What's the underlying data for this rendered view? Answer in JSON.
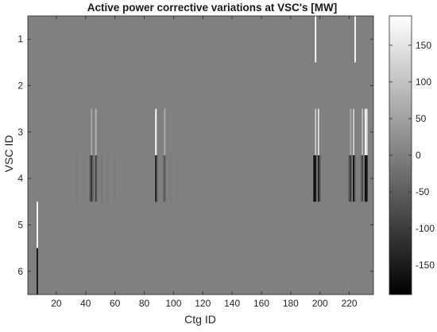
{
  "chart_data": {
    "type": "heatmap",
    "title": "Active power corrective variations at VSC's [MW]",
    "xlabel": "Ctg ID",
    "ylabel": "VSC ID",
    "x_range": [
      0.5,
      236.5
    ],
    "y_range": [
      0.5,
      6.5
    ],
    "y_reversed": true,
    "x_ticks": [
      20,
      40,
      60,
      80,
      100,
      120,
      140,
      160,
      180,
      200,
      220
    ],
    "y_ticks": [
      1,
      2,
      3,
      4,
      5,
      6
    ],
    "colormap": "gray",
    "clim": [
      -190,
      190
    ],
    "colorbar_ticks": [
      150,
      100,
      50,
      0,
      -50,
      -100,
      -150
    ],
    "background_value": 0,
    "rows": [
      1,
      2,
      3,
      4,
      5,
      6
    ],
    "nonzero_cells": [
      {
        "row": 1,
        "col": 197,
        "value": 190
      },
      {
        "row": 1,
        "col": 224,
        "value": 190
      },
      {
        "row": 3,
        "col": 44,
        "value": 60
      },
      {
        "row": 3,
        "col": 47,
        "value": 80
      },
      {
        "row": 3,
        "col": 88,
        "value": 190
      },
      {
        "row": 3,
        "col": 94,
        "value": 70
      },
      {
        "row": 3,
        "col": 197,
        "value": 110
      },
      {
        "row": 3,
        "col": 199,
        "value": 140
      },
      {
        "row": 3,
        "col": 221,
        "value": 70
      },
      {
        "row": 3,
        "col": 223,
        "value": 120
      },
      {
        "row": 3,
        "col": 229,
        "value": 90
      },
      {
        "row": 3,
        "col": 231,
        "value": 180
      },
      {
        "row": 3,
        "col": 232,
        "value": 150
      },
      {
        "row": 4,
        "col": 34,
        "value": -8
      },
      {
        "row": 4,
        "col": 39,
        "value": -5
      },
      {
        "row": 4,
        "col": 43,
        "value": -50
      },
      {
        "row": 4,
        "col": 44,
        "value": -120
      },
      {
        "row": 4,
        "col": 45,
        "value": -40
      },
      {
        "row": 4,
        "col": 47,
        "value": -100
      },
      {
        "row": 4,
        "col": 48,
        "value": -10
      },
      {
        "row": 4,
        "col": 51,
        "value": -12
      },
      {
        "row": 4,
        "col": 55,
        "value": -6
      },
      {
        "row": 4,
        "col": 60,
        "value": -5
      },
      {
        "row": 4,
        "col": 88,
        "value": -160
      },
      {
        "row": 4,
        "col": 89,
        "value": -30
      },
      {
        "row": 4,
        "col": 93,
        "value": -20
      },
      {
        "row": 4,
        "col": 94,
        "value": -70
      },
      {
        "row": 4,
        "col": 98,
        "value": -8
      },
      {
        "row": 4,
        "col": 102,
        "value": -6
      },
      {
        "row": 4,
        "col": 196,
        "value": -180
      },
      {
        "row": 4,
        "col": 197,
        "value": -160
      },
      {
        "row": 4,
        "col": 199,
        "value": -150
      },
      {
        "row": 4,
        "col": 200,
        "value": -60
      },
      {
        "row": 4,
        "col": 220,
        "value": -60
      },
      {
        "row": 4,
        "col": 221,
        "value": -110
      },
      {
        "row": 4,
        "col": 223,
        "value": -170
      },
      {
        "row": 4,
        "col": 224,
        "value": -40
      },
      {
        "row": 4,
        "col": 228,
        "value": -30
      },
      {
        "row": 4,
        "col": 229,
        "value": -90
      },
      {
        "row": 4,
        "col": 231,
        "value": -180
      },
      {
        "row": 4,
        "col": 232,
        "value": -160
      },
      {
        "row": 5,
        "col": 7,
        "value": 190
      },
      {
        "row": 6,
        "col": 7,
        "value": -160
      }
    ]
  }
}
